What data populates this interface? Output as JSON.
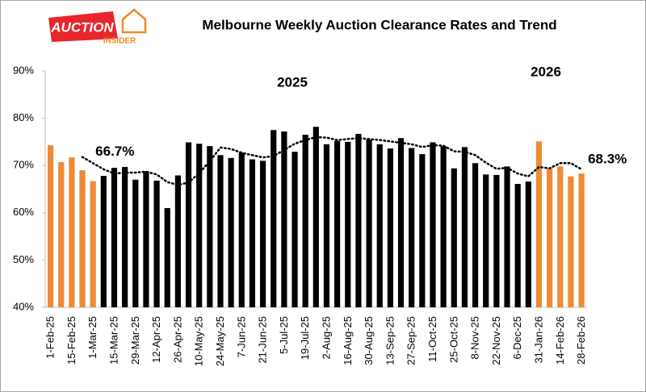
{
  "logo": {
    "word": "AUCTION",
    "sub": "INSIDER"
  },
  "chart_data": {
    "type": "bar",
    "title": "Melbourne Weekly Auction Clearance Rates and Trend",
    "annotations": [
      "2025",
      "2026"
    ],
    "categories": [
      "1-Feb-25",
      null,
      "15-Feb-25",
      null,
      "1-Mar-25",
      null,
      "15-Mar-25",
      null,
      "29-Mar-25",
      null,
      "12-Apr-25",
      null,
      "26-Apr-25",
      null,
      "10-May-25",
      null,
      "24-May-25",
      null,
      "7-Jun-25",
      null,
      "21-Jun-25",
      null,
      "5-Jul-25",
      null,
      "19-Jul-25",
      null,
      "2-Aug-25",
      null,
      "16-Aug-25",
      null,
      "30-Aug-25",
      null,
      "13-Sep-25",
      null,
      "27-Sep-25",
      null,
      "11-Oct-25",
      null,
      "25-Oct-25",
      null,
      "8-Nov-25",
      null,
      "22-Nov-25",
      null,
      "6-Dec-25",
      null,
      "31-Jan-26",
      null,
      "14-Feb-26",
      null,
      "28-Feb-26"
    ],
    "values": [
      74.3,
      70.7,
      71.7,
      69.0,
      66.7,
      67.8,
      69.5,
      69.7,
      67.0,
      68.8,
      66.8,
      61.0,
      67.9,
      74.9,
      74.6,
      74.1,
      72.2,
      71.6,
      72.7,
      71.3,
      71.0,
      77.5,
      77.2,
      72.9,
      76.5,
      78.2,
      74.5,
      75.2,
      75.0,
      76.7,
      75.5,
      74.5,
      73.6,
      75.8,
      73.7,
      72.4,
      74.9,
      74.1,
      69.4,
      73.9,
      70.5,
      68.1,
      68.0,
      69.8,
      66.1,
      66.6,
      75.1,
      69.4,
      69.8,
      67.7,
      68.3
    ],
    "value_labels": [
      null,
      null,
      null,
      null,
      "66.7%",
      null,
      null,
      null,
      null,
      null,
      null,
      null,
      null,
      null,
      null,
      null,
      null,
      null,
      null,
      null,
      null,
      null,
      null,
      null,
      null,
      null,
      null,
      null,
      null,
      null,
      null,
      null,
      null,
      null,
      null,
      null,
      null,
      null,
      null,
      null,
      null,
      null,
      null,
      null,
      null,
      null,
      null,
      null,
      null,
      null,
      "68.3%"
    ],
    "colors": [
      "#ed8a35",
      "#ed8a35",
      "#ed8a35",
      "#ed8a35",
      "#ed8a35",
      "#000000",
      "#000000",
      "#000000",
      "#000000",
      "#000000",
      "#000000",
      "#000000",
      "#000000",
      "#000000",
      "#000000",
      "#000000",
      "#000000",
      "#000000",
      "#000000",
      "#000000",
      "#000000",
      "#000000",
      "#000000",
      "#000000",
      "#000000",
      "#000000",
      "#000000",
      "#000000",
      "#000000",
      "#000000",
      "#000000",
      "#000000",
      "#000000",
      "#000000",
      "#000000",
      "#000000",
      "#000000",
      "#000000",
      "#000000",
      "#000000",
      "#000000",
      "#000000",
      "#000000",
      "#000000",
      "#000000",
      "#000000",
      "#ed8a35",
      "#ed8a35",
      "#ed8a35",
      "#ed8a35",
      "#ed8a35"
    ],
    "trend": [
      null,
      null,
      null,
      71.8,
      70.5,
      69.2,
      68.3,
      68.5,
      68.5,
      68.7,
      68.1,
      66.5,
      65.9,
      66.4,
      68.4,
      70.9,
      73.8,
      73.5,
      72.7,
      72.2,
      71.7,
      72.0,
      73.3,
      74.6,
      75.4,
      76.0,
      75.9,
      75.4,
      75.6,
      75.8,
      75.6,
      75.4,
      75.1,
      74.8,
      74.5,
      73.9,
      74.3,
      74.2,
      73.0,
      72.9,
      72.2,
      70.6,
      69.3,
      69.5,
      68.3,
      67.7,
      69.7,
      69.4,
      70.5,
      70.5,
      69.2
    ],
    "trend_color": "#000000",
    "ylim": [
      40,
      90
    ],
    "yticks": [
      {
        "value": 40,
        "label": "40%"
      },
      {
        "value": 50,
        "label": "50%"
      },
      {
        "value": 60,
        "label": "60%"
      },
      {
        "value": 70,
        "label": "70%"
      },
      {
        "value": 80,
        "label": "80%"
      },
      {
        "value": 90,
        "label": "90%"
      }
    ],
    "grid": false
  }
}
